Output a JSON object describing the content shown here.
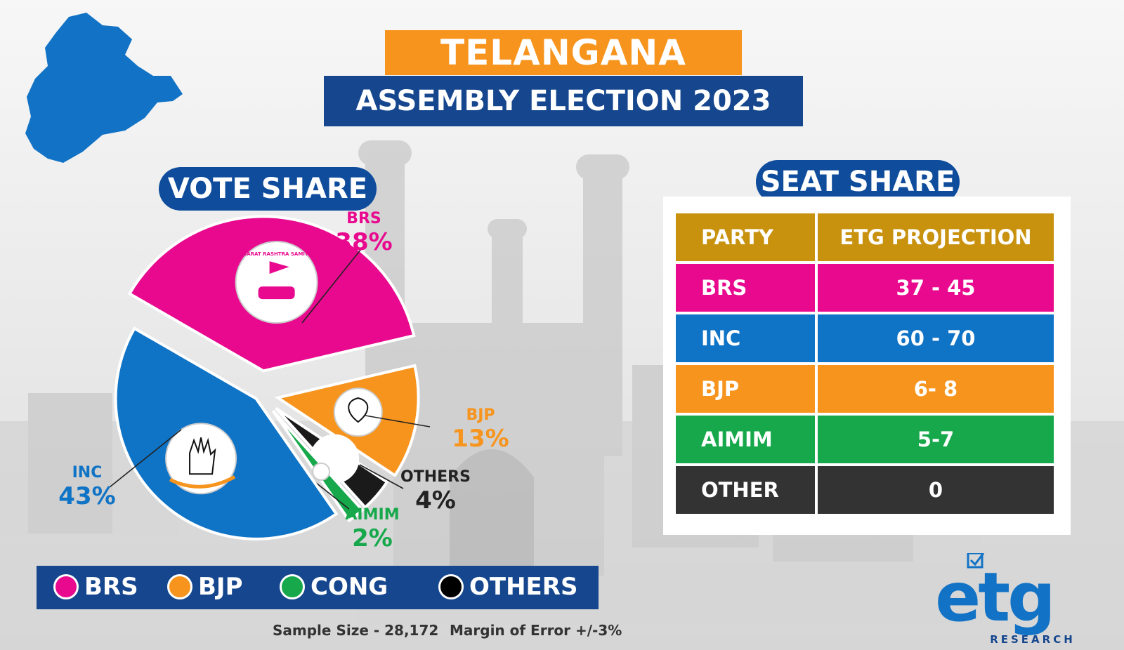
{
  "title": "TELANGANA",
  "subtitle": "ASSEMBLY ELECTION 2023",
  "vote_share_heading": "VOTE SHARE",
  "seat_share_heading": "SEAT SHARE",
  "chart_data": {
    "type": "pie",
    "slices": [
      {
        "party": "BRS",
        "value": 38,
        "label": "38%",
        "color": "#e8098f"
      },
      {
        "party": "BJP",
        "value": 13,
        "label": "13%",
        "color": "#f7941d"
      },
      {
        "party": "OTHERS",
        "value": 4,
        "label": "4%",
        "color": "#1a1a1a"
      },
      {
        "party": "AIMIM",
        "value": 2,
        "label": "2%",
        "color": "#16a84b"
      },
      {
        "party": "INC",
        "value": 43,
        "label": "43%",
        "color": "#0f73c6"
      }
    ],
    "logo_text": "BHARAT RASHTRA SAMITHI"
  },
  "seat_table": {
    "headers": [
      "PARTY",
      "ETG PROJECTION"
    ],
    "header_color": "#c8920f",
    "rows": [
      {
        "party": "BRS",
        "projection": "37 - 45",
        "color": "#e8098f"
      },
      {
        "party": "INC",
        "projection": "60 - 70",
        "color": "#0f73c6"
      },
      {
        "party": "BJP",
        "projection": "6- 8",
        "color": "#f7941d"
      },
      {
        "party": "AIMIM",
        "projection": "5-7",
        "color": "#16a84b"
      },
      {
        "party": "OTHER",
        "projection": "0",
        "color": "#333333"
      }
    ]
  },
  "legend": [
    {
      "label": "BRS",
      "color": "#e8098f"
    },
    {
      "label": "BJP",
      "color": "#f7941d"
    },
    {
      "label": "CONG",
      "color": "#16a84b"
    },
    {
      "label": "OTHERS",
      "color": "#000000"
    }
  ],
  "sample_size": "Sample Size - 28,172",
  "margin_of_error": "Margin of Error +/-3%",
  "logo": {
    "brand": "etg",
    "tagline": "RESEARCH"
  }
}
